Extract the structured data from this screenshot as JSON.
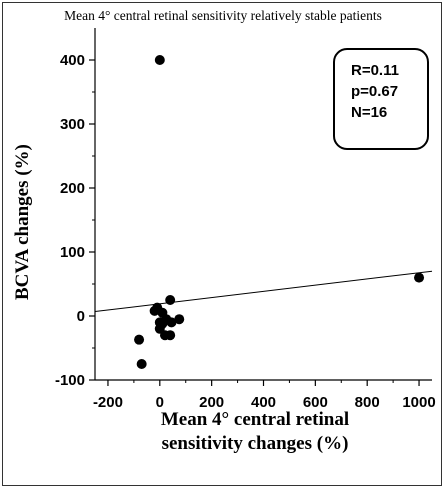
{
  "chart_data": {
    "type": "scatter",
    "title": "Mean 4° central retinal sensitivity relatively stable patients",
    "xlabel_lines": [
      "Mean 4° central retinal",
      "sensitivity changes (%)"
    ],
    "ylabel": "BCVA changes (%)",
    "xlim": [
      -250,
      1050
    ],
    "ylim": [
      -100,
      450
    ],
    "xticks": [
      -200,
      0,
      200,
      400,
      600,
      800,
      1000
    ],
    "yticks": [
      -100,
      0,
      100,
      200,
      300,
      400
    ],
    "grid": false,
    "points": [
      {
        "x": 0,
        "y": 400
      },
      {
        "x": 1000,
        "y": 60
      },
      {
        "x": -10,
        "y": 13
      },
      {
        "x": -20,
        "y": 8
      },
      {
        "x": 10,
        "y": 5
      },
      {
        "x": 40,
        "y": 25
      },
      {
        "x": 25,
        "y": -5
      },
      {
        "x": 45,
        "y": -10
      },
      {
        "x": 75,
        "y": -5
      },
      {
        "x": 0,
        "y": -10
      },
      {
        "x": 0,
        "y": -20
      },
      {
        "x": 20,
        "y": -30
      },
      {
        "x": 40,
        "y": -30
      },
      {
        "x": -80,
        "y": -37
      },
      {
        "x": -70,
        "y": -75
      },
      {
        "x": 10,
        "y": -12
      }
    ],
    "regression_line": {
      "x": [
        -250,
        1050
      ],
      "y": [
        7,
        70
      ]
    },
    "annotation": [
      "R=0.11",
      "p=0.67",
      "N=16"
    ]
  }
}
